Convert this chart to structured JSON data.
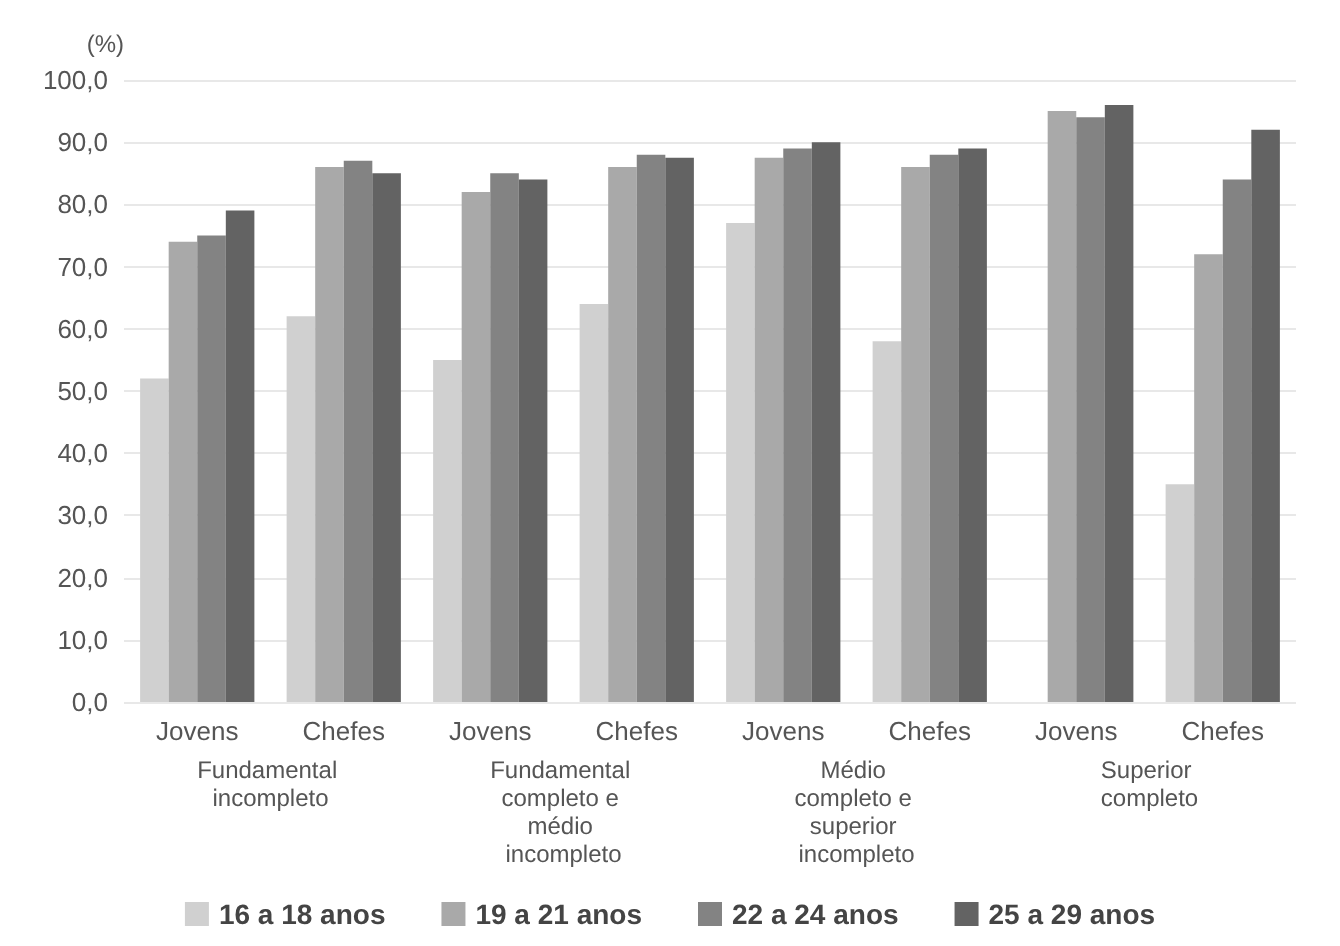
{
  "chart_data": {
    "type": "bar",
    "ylabel": "(%)",
    "categories": [
      "Jovens",
      "Chefes",
      "Jovens",
      "Chefes",
      "Jovens",
      "Chefes",
      "Jovens",
      "Chefes"
    ],
    "series": [
      {
        "name": "16 a 18 anos",
        "color": "#d0d0d0",
        "values": [
          52,
          62,
          55,
          64,
          77,
          58,
          null,
          35
        ]
      },
      {
        "name": "19 a 21 anos",
        "color": "#a9a9a9",
        "values": [
          74,
          86,
          82,
          86,
          87.5,
          86,
          95,
          72
        ]
      },
      {
        "name": "22 a 24 anos",
        "color": "#838383",
        "values": [
          75,
          87,
          85,
          88,
          89,
          88,
          94,
          84
        ]
      },
      {
        "name": "25 a 29 anos",
        "color": "#636363",
        "values": [
          79,
          85,
          84,
          87.5,
          90,
          89,
          96,
          92
        ]
      }
    ],
    "annotations": [
      "Fundamental incompleto",
      "Fundamental completo e médio incompleto",
      "Médio completo e superior incompleto",
      "Superior completo"
    ],
    "ylim": [
      0,
      100
    ],
    "yticks": [
      {
        "value": 0,
        "label": "0,0"
      },
      {
        "value": 10,
        "label": "10,0"
      },
      {
        "value": 20,
        "label": "20,0"
      },
      {
        "value": 30,
        "label": "30,0"
      },
      {
        "value": 40,
        "label": "40,0"
      },
      {
        "value": 50,
        "label": "50,0"
      },
      {
        "value": 60,
        "label": "60,0"
      },
      {
        "value": 70,
        "label": "70,0"
      },
      {
        "value": 80,
        "label": "80,0"
      },
      {
        "value": 90,
        "label": "90,0"
      },
      {
        "value": 100,
        "label": "100,0"
      }
    ],
    "grid": "y",
    "legend": "bottom"
  }
}
